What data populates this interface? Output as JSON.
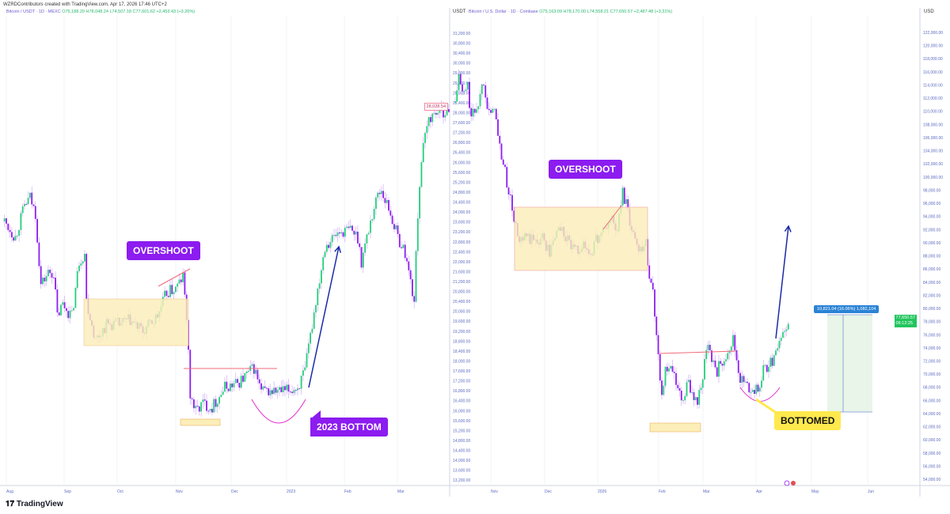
{
  "credit": "WZRDContributors created with TradingView.com, Apr 17, 2026 17:46 UTC+2",
  "brand": "TradingView",
  "left_chart": {
    "symbol": "Bitcoin / USDT · 1D · MEXC",
    "ohlc": "O75,188.20 H78,048.24 L74,507.18 C77,601.62 +2,453.43 (+3.26%)",
    "currency": "USDT",
    "last_price_label": "28,028.54",
    "months": [
      "Aug",
      "Sep",
      "Oct",
      "Nov",
      "Dec",
      "2023",
      "Feb",
      "Mar"
    ],
    "annotations": {
      "overshoot": "OVERSHOOT",
      "bottom": "2023 BOTTOM"
    }
  },
  "right_chart": {
    "symbol": "Bitcoin / U.S. Dollar · 1D · Coinbase",
    "ohlc": "O75,163.09 H78,170.00 L74,558.21 C77,650.57 +2,487.48 (+3.31%)",
    "currency": "USD",
    "last_price_label": "77,650.57",
    "countdown": "06:12:25",
    "months": [
      "Nov",
      "Dec",
      "2026",
      "Feb",
      "Mar",
      "Apr",
      "May",
      "Jun"
    ],
    "measure_label": "10,821.04 (16.06%) 1,082,104",
    "annotations": {
      "overshoot": "OVERSHOOT",
      "bottom": "BOTTOMED"
    }
  },
  "colors": {
    "up": "#22cf7a",
    "down": "#8c1cf0",
    "wick": "#c9a0f5",
    "box": "#fbeeb8",
    "red_line": "#f06a7a",
    "arc": "#e030d0",
    "arrow": "#1a2aa8",
    "axis_text": "#5c6bc0"
  },
  "chart_data": [
    {
      "type": "candlestick",
      "ylim": [
        13200,
        31200
      ],
      "ytick_step": 400,
      "points": [
        [
          "2022-07-31",
          23620
        ],
        [
          "2022-08-06",
          22980
        ],
        [
          "2022-08-11",
          24260
        ],
        [
          "2022-08-14",
          24580
        ],
        [
          "2022-08-17",
          23940
        ],
        [
          "2022-08-20",
          21070
        ],
        [
          "2022-08-24",
          21550
        ],
        [
          "2022-08-27",
          21550
        ],
        [
          "2022-08-29",
          19800
        ],
        [
          "2022-09-01",
          20280
        ],
        [
          "2022-09-06",
          19800
        ],
        [
          "2022-09-10",
          22030
        ],
        [
          "2022-09-13",
          22350
        ],
        [
          "2022-09-14",
          20435
        ],
        [
          "2022-09-19",
          18840
        ],
        [
          "2022-09-25",
          19480
        ],
        [
          "2022-10-02",
          19480
        ],
        [
          "2022-10-08",
          19640
        ],
        [
          "2022-10-15",
          19160
        ],
        [
          "2022-10-23",
          19800
        ],
        [
          "2022-10-28",
          20750
        ],
        [
          "2022-11-02",
          20910
        ],
        [
          "2022-11-06",
          21390
        ],
        [
          "2022-11-08",
          19800
        ],
        [
          "2022-11-10",
          16610
        ],
        [
          "2022-11-13",
          15980
        ],
        [
          "2022-11-17",
          16290
        ],
        [
          "2022-11-22",
          16135
        ],
        [
          "2022-11-29",
          16930
        ],
        [
          "2022-12-06",
          17090
        ],
        [
          "2022-12-15",
          17730
        ],
        [
          "2022-12-19",
          16770
        ],
        [
          "2022-12-25",
          16770
        ],
        [
          "2023-01-01",
          16770
        ],
        [
          "2023-01-08",
          16930
        ],
        [
          "2023-01-12",
          17570
        ],
        [
          "2023-01-18",
          20435
        ],
        [
          "2023-01-23",
          22660
        ],
        [
          "2023-01-30",
          23140
        ],
        [
          "2023-02-06",
          23300
        ],
        [
          "2023-02-10",
          22980
        ],
        [
          "2023-02-12",
          22030
        ],
        [
          "2023-02-17",
          23620
        ],
        [
          "2023-02-21",
          24730
        ],
        [
          "2023-02-23",
          24900
        ],
        [
          "2023-02-28",
          23940
        ],
        [
          "2023-03-04",
          22980
        ],
        [
          "2023-03-08",
          22350
        ],
        [
          "2023-03-13",
          20435
        ],
        [
          "2023-03-15",
          23940
        ],
        [
          "2023-03-17",
          26170
        ],
        [
          "2023-03-21",
          27760
        ],
        [
          "2023-03-26",
          28080
        ],
        [
          "2023-03-30",
          28080
        ],
        [
          "2023-04-01",
          28028
        ]
      ]
    },
    {
      "type": "candlestick",
      "ylim": [
        54000,
        122000
      ],
      "ytick_step": 2000,
      "points": [
        [
          "2025-10-12",
          111290
        ],
        [
          "2025-10-14",
          115500
        ],
        [
          "2025-10-16",
          112490
        ],
        [
          "2025-10-19",
          113700
        ],
        [
          "2025-10-21",
          108880
        ],
        [
          "2025-10-23",
          110090
        ],
        [
          "2025-10-25",
          111290
        ],
        [
          "2025-10-28",
          114900
        ],
        [
          "2025-10-30",
          111290
        ],
        [
          "2025-11-01",
          108880
        ],
        [
          "2025-11-03",
          111290
        ],
        [
          "2025-11-05",
          105870
        ],
        [
          "2025-11-10",
          99250
        ],
        [
          "2025-11-13",
          95040
        ],
        [
          "2025-11-17",
          89630
        ],
        [
          "2025-11-21",
          90830
        ],
        [
          "2025-11-25",
          90230
        ],
        [
          "2025-11-30",
          90830
        ],
        [
          "2025-12-04",
          88420
        ],
        [
          "2025-12-09",
          92630
        ],
        [
          "2025-12-13",
          90830
        ],
        [
          "2025-12-18",
          88420
        ],
        [
          "2025-12-22",
          89630
        ],
        [
          "2025-12-27",
          88420
        ],
        [
          "2025-12-31",
          90830
        ],
        [
          "2026-01-04",
          92030
        ],
        [
          "2026-01-08",
          93840
        ],
        [
          "2026-01-11",
          91430
        ],
        [
          "2026-01-14",
          98050
        ],
        [
          "2026-01-16",
          95640
        ],
        [
          "2026-01-18",
          93240
        ],
        [
          "2026-01-22",
          89630
        ],
        [
          "2026-01-27",
          89630
        ],
        [
          "2026-01-29",
          85410
        ],
        [
          "2026-01-31",
          82400
        ],
        [
          "2026-02-02",
          76390
        ],
        [
          "2026-02-05",
          66760
        ],
        [
          "2026-02-07",
          70370
        ],
        [
          "2026-02-11",
          70370
        ],
        [
          "2026-02-16",
          65560
        ],
        [
          "2026-02-20",
          68570
        ],
        [
          "2026-02-25",
          65560
        ],
        [
          "2026-03-01",
          71570
        ],
        [
          "2026-03-03",
          73980
        ],
        [
          "2026-03-08",
          70370
        ],
        [
          "2026-03-12",
          72780
        ],
        [
          "2026-03-17",
          75180
        ],
        [
          "2026-03-21",
          69170
        ],
        [
          "2026-03-25",
          67970
        ],
        [
          "2026-03-30",
          67370
        ],
        [
          "2026-04-03",
          70370
        ],
        [
          "2026-04-08",
          72180
        ],
        [
          "2026-04-10",
          73980
        ],
        [
          "2026-04-12",
          75180
        ],
        [
          "2026-04-16",
          76390
        ],
        [
          "2026-04-17",
          77650
        ]
      ]
    }
  ]
}
